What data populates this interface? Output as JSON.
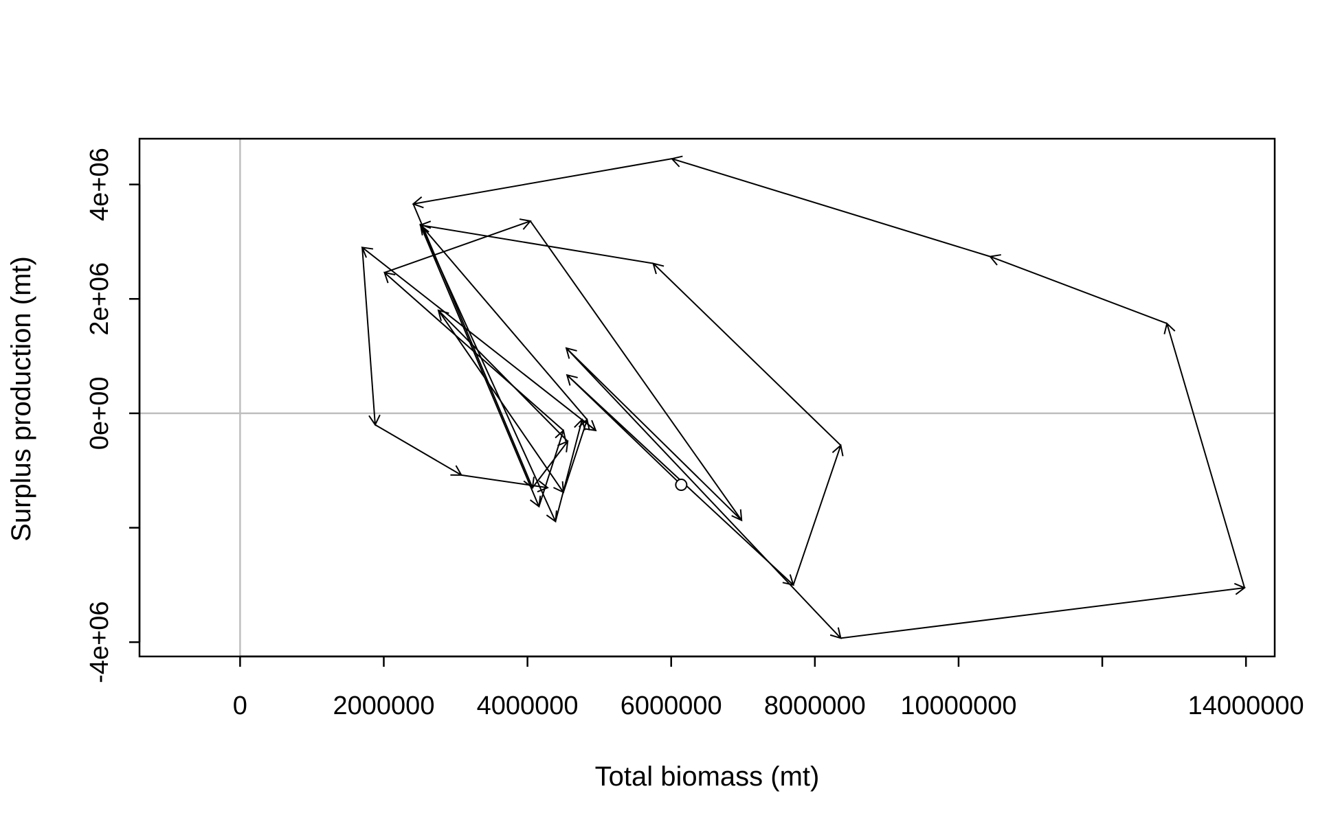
{
  "chart_data": {
    "type": "line",
    "xlabel": "Total biomass (mt)",
    "ylabel": "Surplus production (mt)",
    "xlim": [
      -1400000,
      14400000
    ],
    "ylim": [
      -4250000,
      4800000
    ],
    "x_ticks": [
      0,
      2000000,
      4000000,
      6000000,
      8000000,
      10000000,
      12000000,
      14000000
    ],
    "x_tick_labels": [
      "0",
      "2000000",
      "4000000",
      "6000000",
      "8000000",
      "10000000",
      "",
      "14000000"
    ],
    "y_ticks": [
      -4000000,
      -2000000,
      0,
      2000000,
      4000000
    ],
    "y_tick_labels": [
      "-4e+06",
      "",
      "0e+00",
      "2e+06",
      "4e+06"
    ],
    "reference_lines": {
      "x": 0,
      "y": 0,
      "color": "#bebebe"
    },
    "start_marker": "open-circle",
    "grid": false,
    "legend": "none",
    "colors": {
      "line": "#000000",
      "reference": "#bebebe",
      "background": "#ffffff"
    },
    "points": [
      {
        "x": 6140000,
        "y": -1250000
      },
      {
        "x": 4550000,
        "y": 670000
      },
      {
        "x": 7700000,
        "y": -3000000
      },
      {
        "x": 8360000,
        "y": -560000
      },
      {
        "x": 5750000,
        "y": 2620000
      },
      {
        "x": 2510000,
        "y": 3290000
      },
      {
        "x": 4160000,
        "y": -1630000
      },
      {
        "x": 4500000,
        "y": -300000
      },
      {
        "x": 2010000,
        "y": 2460000
      },
      {
        "x": 4040000,
        "y": 3360000
      },
      {
        "x": 6980000,
        "y": -1870000
      },
      {
        "x": 4540000,
        "y": 1140000
      },
      {
        "x": 8360000,
        "y": -3930000
      },
      {
        "x": 13980000,
        "y": -3050000
      },
      {
        "x": 12900000,
        "y": 1570000
      },
      {
        "x": 10440000,
        "y": 2740000
      },
      {
        "x": 6010000,
        "y": 4450000
      },
      {
        "x": 2410000,
        "y": 3660000
      },
      {
        "x": 4070000,
        "y": -1300000
      },
      {
        "x": 4560000,
        "y": -490000
      },
      {
        "x": 2760000,
        "y": 1800000
      },
      {
        "x": 4500000,
        "y": -1380000
      },
      {
        "x": 4830000,
        "y": -110000
      },
      {
        "x": 2510000,
        "y": 3300000
      },
      {
        "x": 4390000,
        "y": -1890000
      },
      {
        "x": 4760000,
        "y": -110000
      },
      {
        "x": 4950000,
        "y": -300000
      },
      {
        "x": 1700000,
        "y": 2900000
      },
      {
        "x": 1880000,
        "y": -200000
      },
      {
        "x": 3080000,
        "y": -1080000
      },
      {
        "x": 4280000,
        "y": -1300000
      }
    ]
  }
}
